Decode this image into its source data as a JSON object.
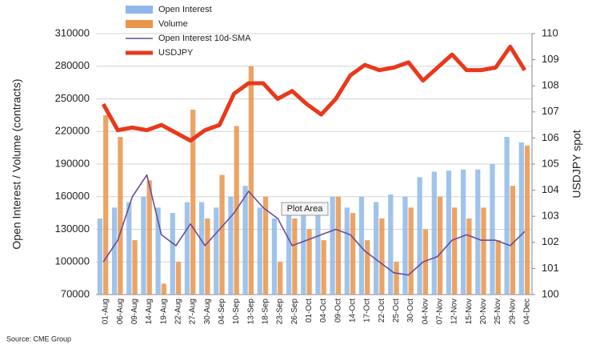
{
  "chart_data": {
    "type": "bar-line",
    "y_label": "Open Interest / Volume (contracts)",
    "y2_label": "USDJPY spot",
    "source": "Source: CME Group",
    "annotation": "Plot Area",
    "categories": [
      "01-Aug",
      "06-Aug",
      "09-Aug",
      "14-Aug",
      "19-Aug",
      "22-Aug",
      "27-Aug",
      "30-Aug",
      "04-Sep",
      "10-Sep",
      "13-Sep",
      "18-Sep",
      "23-Sep",
      "26-Sep",
      "01-Oct",
      "04-Oct",
      "09-Oct",
      "14-Oct",
      "17-Oct",
      "22-Oct",
      "25-Oct",
      "30-Oct",
      "04-Nov",
      "07-Nov",
      "12-Nov",
      "15-Nov",
      "20-Nov",
      "25-Nov",
      "29-Nov",
      "04-Dec"
    ],
    "series": [
      {
        "name": "Open Interest",
        "type": "bar",
        "color": "#8fb8e8",
        "values": [
          140000,
          150000,
          155000,
          160000,
          150000,
          145000,
          155000,
          155000,
          150000,
          160000,
          170000,
          150000,
          140000,
          145000,
          150000,
          155000,
          160000,
          150000,
          160000,
          155000,
          162000,
          160000,
          178000,
          183000,
          184000,
          185000,
          185000,
          190000,
          215000,
          210000
        ]
      },
      {
        "name": "Volume",
        "type": "bar",
        "color": "#e8944a",
        "values": [
          235000,
          215000,
          120000,
          175000,
          80000,
          100000,
          240000,
          140000,
          180000,
          225000,
          280000,
          160000,
          100000,
          140000,
          130000,
          120000,
          160000,
          145000,
          120000,
          140000,
          100000,
          150000,
          130000,
          160000,
          150000,
          140000,
          150000,
          120000,
          170000,
          207000
        ]
      },
      {
        "name": "Open Interest 10d-SMA",
        "type": "line",
        "color": "#6a4c9c",
        "values": [
          100000,
          120000,
          160000,
          180000,
          125000,
          115000,
          135000,
          115000,
          130000,
          145000,
          165000,
          150000,
          140000,
          115000,
          120000,
          125000,
          130000,
          125000,
          110000,
          100000,
          90000,
          88000,
          100000,
          105000,
          120000,
          125000,
          120000,
          120000,
          115000,
          128000
        ]
      },
      {
        "name": "USDJPY",
        "type": "line",
        "axis": "y2",
        "color": "#e8391c",
        "values": [
          107.3,
          106.3,
          106.4,
          106.3,
          106.5,
          106.2,
          105.9,
          106.3,
          106.5,
          107.7,
          108.1,
          108.1,
          107.5,
          107.8,
          107.3,
          106.9,
          107.5,
          108.4,
          108.8,
          108.6,
          108.7,
          108.9,
          108.2,
          108.7,
          109.2,
          108.6,
          108.6,
          108.7,
          109.5,
          108.6
        ]
      }
    ],
    "ylim": [
      70000,
      310000
    ],
    "yticks": [
      70000,
      100000,
      130000,
      160000,
      190000,
      220000,
      250000,
      280000,
      310000
    ],
    "y2lim": [
      100,
      110
    ],
    "y2ticks": [
      100,
      101,
      102,
      103,
      104,
      105,
      106,
      107,
      108,
      109,
      110
    ]
  }
}
